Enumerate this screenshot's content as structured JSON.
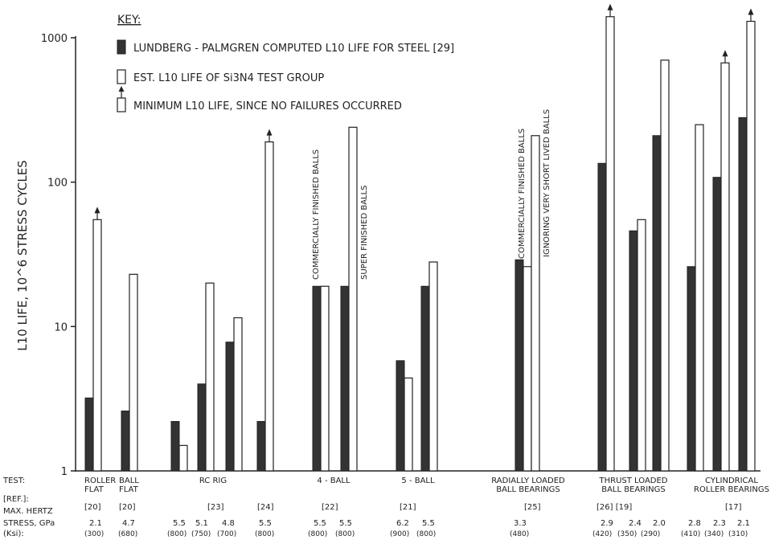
{
  "chart_data": {
    "type": "bar",
    "yscale": "log",
    "ylim": [
      1,
      1500
    ],
    "ylabel": "L10 LIFE, 10^6 STRESS CYCLES",
    "yticks": [
      {
        "value": 1,
        "label": "1"
      },
      {
        "value": 10,
        "label": "10"
      },
      {
        "value": 100,
        "label": "100"
      },
      {
        "value": 1000,
        "label": "1000"
      }
    ],
    "legend": {
      "heading": "KEY:",
      "entries": [
        {
          "style": "filled",
          "text": "LUNDBERG - PALMGREN COMPUTED L10 LIFE FOR STEEL [29]"
        },
        {
          "style": "open",
          "text": "EST. L10 LIFE OF Si3N4 TEST GROUP"
        },
        {
          "style": "open-arrow",
          "text": "MINIMUM L10 LIFE, SINCE NO FAILURES OCCURRED"
        }
      ]
    },
    "bars": [
      {
        "steel": 3.2,
        "si3n4": 55,
        "min": true
      },
      {
        "steel": 2.6,
        "si3n4": 23,
        "min": false
      },
      {
        "steel": 2.2,
        "si3n4": 1.5,
        "min": false
      },
      {
        "steel": 4.0,
        "si3n4": 20,
        "min": false
      },
      {
        "steel": 7.8,
        "si3n4": 11.5,
        "min": false
      },
      {
        "steel": 2.2,
        "si3n4": 190,
        "min": true
      },
      {
        "steel": 19,
        "si3n4": 19,
        "min": false
      },
      {
        "steel": 19,
        "si3n4": 240,
        "min": false
      },
      {
        "steel": 5.8,
        "si3n4": 4.4,
        "min": false
      },
      {
        "steel": 19,
        "si3n4": 28,
        "min": false
      },
      {
        "steel": 29,
        "si3n4": 26,
        "min": false,
        "extra_open": 210
      },
      {
        "steel": 135,
        "si3n4": 1400,
        "min": true
      },
      {
        "steel": 46,
        "si3n4": 55,
        "min": false
      },
      {
        "steel": 210,
        "si3n4": 700,
        "min": false
      },
      {
        "steel": 26,
        "si3n4": 250,
        "min": false
      },
      {
        "steel": 108,
        "si3n4": 670,
        "min": true
      },
      {
        "steel": 280,
        "si3n4": 1300,
        "min": true
      }
    ],
    "annotations": [
      "COMMERCIALLY FINISHED BALLS",
      "SUPER FINISHED BALLS",
      "COMMERCIALLY FINISHED BALLS",
      "IGNORING VERY SHORT LIVED BALLS"
    ],
    "row_labels": {
      "test": "TEST:",
      "ref": "[REF.]:",
      "hertz": "MAX. HERTZ",
      "stress": "STRESS, GPa",
      "ksi": "(Ksi):"
    },
    "tests": [
      {
        "name": [
          "ROLLER",
          "FLAT"
        ],
        "ref": "[20]",
        "stress": [
          "2.1"
        ],
        "ksi": [
          "(300)"
        ]
      },
      {
        "name": [
          "BALL",
          "FLAT"
        ],
        "ref": "[20]",
        "stress": [
          "4.7"
        ],
        "ksi": [
          "(680)"
        ]
      },
      {
        "name": [
          "RC  RIG"
        ],
        "ref": "[23]",
        "stress": [
          "5.5",
          "5.1",
          "4.8"
        ],
        "ksi": [
          "(800)",
          "(750)",
          "(700)"
        ]
      },
      {
        "name": [
          ""
        ],
        "ref": "[24]",
        "stress": [
          "5.5"
        ],
        "ksi": [
          "(800)"
        ]
      },
      {
        "name": [
          "4 - BALL"
        ],
        "ref": "[22]",
        "stress": [
          "5.5",
          "5.5"
        ],
        "ksi": [
          "(800)",
          "(800)"
        ]
      },
      {
        "name": [
          "5 - BALL"
        ],
        "ref": "[21]",
        "stress": [
          "6.2",
          "5.5"
        ],
        "ksi": [
          "(900)",
          "(800)"
        ]
      },
      {
        "name": [
          "RADIALLY LOADED",
          "BALL BEARINGS"
        ],
        "ref": "[25]",
        "stress": [
          "3.3"
        ],
        "ksi": [
          "(480)"
        ]
      },
      {
        "name": [
          "THRUST  LOADED",
          "BALL BEARINGS"
        ],
        "ref": "[26]   [19]",
        "stress": [
          "2.9",
          "2.4",
          "2.0"
        ],
        "ksi": [
          "(420)",
          "(350)",
          "(290)"
        ]
      },
      {
        "name": [
          "CYLINDRICAL",
          "ROLLER BEARINGS"
        ],
        "ref": "[17]",
        "stress": [
          "2.8",
          "2.3",
          "2.1"
        ],
        "ksi": [
          "(410)",
          "(340)",
          "(310)"
        ]
      }
    ]
  }
}
